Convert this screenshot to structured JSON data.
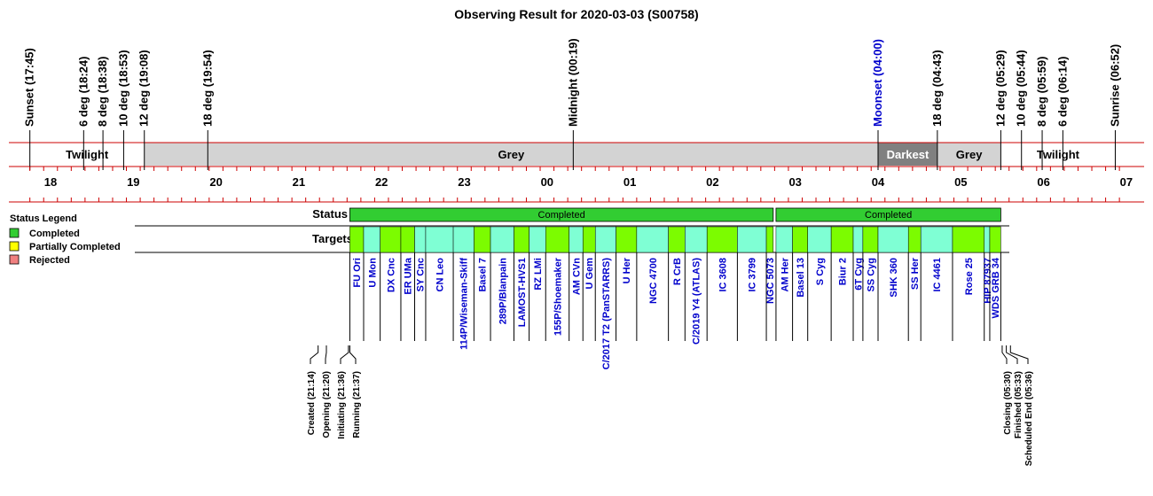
{
  "chart_data": {
    "type": "timeline",
    "title": "Observing Result for 2020-03-03 (S00758)",
    "events": [
      {
        "label": "Sunset (17:45)",
        "time": "17:45"
      },
      {
        "label": "6 deg (18:24)",
        "time": "18:24"
      },
      {
        "label": "8 deg (18:38)",
        "time": "18:38"
      },
      {
        "label": "10 deg (18:53)",
        "time": "18:53"
      },
      {
        "label": "12 deg (19:08)",
        "time": "19:08"
      },
      {
        "label": "18 deg (19:54)",
        "time": "19:54"
      },
      {
        "label": "Midnight (00:19)",
        "time": "00:19"
      },
      {
        "label": "Moonset (04:00)",
        "time": "04:00",
        "color": "#0000cc"
      },
      {
        "label": "18 deg (04:43)",
        "time": "04:43"
      },
      {
        "label": "12 deg (05:29)",
        "time": "05:29"
      },
      {
        "label": "10 deg (05:44)",
        "time": "05:44"
      },
      {
        "label": "8 deg (05:59)",
        "time": "05:59"
      },
      {
        "label": "6 deg (06:14)",
        "time": "06:14"
      },
      {
        "label": "Sunrise (06:52)",
        "time": "06:52"
      }
    ],
    "phases": [
      {
        "label": "Twilight",
        "start": "17:45",
        "end": "19:08",
        "color": "#ffffff",
        "text_color": "#000000"
      },
      {
        "label": "Grey",
        "start": "19:08",
        "end": "04:00",
        "color": "#d3d3d3",
        "text_color": "#000000"
      },
      {
        "label": "Darkest",
        "start": "04:00",
        "end": "04:43",
        "color": "#808080",
        "text_color": "#ffffff"
      },
      {
        "label": "Grey",
        "start": "04:43",
        "end": "05:29",
        "color": "#d3d3d3",
        "text_color": "#000000"
      },
      {
        "label": "Twilight",
        "start": "05:29",
        "end": "06:52",
        "color": "#ffffff",
        "text_color": "#000000"
      }
    ],
    "hour_ticks": [
      "18",
      "19",
      "20",
      "21",
      "22",
      "23",
      "00",
      "01",
      "02",
      "03",
      "04",
      "05",
      "06",
      "07"
    ],
    "status_label": "Status",
    "targets_label": "Targets",
    "status_blocks": [
      {
        "label": "Completed",
        "start": "21:37",
        "end": "02:44",
        "status": "Completed"
      },
      {
        "label": "Completed",
        "start": "02:46",
        "end": "05:29",
        "status": "Completed"
      }
    ],
    "targets": [
      {
        "name": "FU Ori",
        "start": "21:37",
        "end": "21:47",
        "color": "#7cfc00"
      },
      {
        "name": "U Mon",
        "start": "21:47",
        "end": "21:59",
        "color": "#7fffd4"
      },
      {
        "name": "DX Cnc",
        "start": "21:59",
        "end": "22:14",
        "color": "#7cfc00"
      },
      {
        "name": "ER UMa",
        "start": "22:14",
        "end": "22:24",
        "color": "#7cfc00"
      },
      {
        "name": "SY Cnc",
        "start": "22:24",
        "end": "22:32",
        "color": "#7fffd4"
      },
      {
        "name": "CN Leo",
        "start": "22:32",
        "end": "22:52",
        "color": "#7fffd4"
      },
      {
        "name": "114P/Wiseman-Skiff",
        "start": "22:52",
        "end": "23:07",
        "color": "#7fffd4"
      },
      {
        "name": "Basel 7",
        "start": "23:07",
        "end": "23:19",
        "color": "#7cfc00"
      },
      {
        "name": "289P/Blanpain",
        "start": "23:19",
        "end": "23:36",
        "color": "#7fffd4"
      },
      {
        "name": "LAMOST-HVS1",
        "start": "23:36",
        "end": "23:47",
        "color": "#7cfc00"
      },
      {
        "name": "RZ LMi",
        "start": "23:47",
        "end": "23:59",
        "color": "#7fffd4"
      },
      {
        "name": "155P/Shoemaker",
        "start": "23:59",
        "end": "00:16",
        "color": "#7cfc00"
      },
      {
        "name": "AM CVn",
        "start": "00:16",
        "end": "00:26",
        "color": "#7fffd4"
      },
      {
        "name": "U Gem",
        "start": "00:26",
        "end": "00:35",
        "color": "#7cfc00"
      },
      {
        "name": "C/2017 T2 (PanSTARRS)",
        "start": "00:35",
        "end": "00:50",
        "color": "#7fffd4"
      },
      {
        "name": "U Her",
        "start": "00:50",
        "end": "01:05",
        "color": "#7cfc00"
      },
      {
        "name": "NGC 4700",
        "start": "01:05",
        "end": "01:28",
        "color": "#7fffd4"
      },
      {
        "name": "R CrB",
        "start": "01:28",
        "end": "01:40",
        "color": "#7cfc00"
      },
      {
        "name": "C/2019 Y4 (ATLAS)",
        "start": "01:40",
        "end": "01:56",
        "color": "#7fffd4"
      },
      {
        "name": "IC 3608",
        "start": "01:56",
        "end": "02:18",
        "color": "#7cfc00"
      },
      {
        "name": "IC 3799",
        "start": "02:18",
        "end": "02:39",
        "color": "#7fffd4"
      },
      {
        "name": "NGC 5073",
        "start": "02:39",
        "end": "02:44",
        "color": "#7cfc00"
      },
      {
        "name": "AM Her",
        "start": "02:46",
        "end": "02:58",
        "color": "#7fffd4"
      },
      {
        "name": "Basel 13",
        "start": "02:58",
        "end": "03:09",
        "color": "#7cfc00"
      },
      {
        "name": "S Cyg",
        "start": "03:09",
        "end": "03:26",
        "color": "#7fffd4"
      },
      {
        "name": "Biur 2",
        "start": "03:26",
        "end": "03:42",
        "color": "#7cfc00"
      },
      {
        "name": "6T Cyg",
        "start": "03:42",
        "end": "03:49",
        "color": "#7fffd4"
      },
      {
        "name": "SS Cyg",
        "start": "03:49",
        "end": "04:00",
        "color": "#7cfc00"
      },
      {
        "name": "SHK 360",
        "start": "04:00",
        "end": "04:22",
        "color": "#7fffd4"
      },
      {
        "name": "SS Her",
        "start": "04:22",
        "end": "04:31",
        "color": "#7cfc00"
      },
      {
        "name": "IC 4461",
        "start": "04:31",
        "end": "04:54",
        "color": "#7fffd4"
      },
      {
        "name": "Rose 25",
        "start": "04:54",
        "end": "05:17",
        "color": "#7cfc00"
      },
      {
        "name": "HIP 87937",
        "start": "05:17",
        "end": "05:21",
        "color": "#7fffd4"
      },
      {
        "name": "WDS GRB 34",
        "start": "05:21",
        "end": "05:29",
        "color": "#7cfc00"
      }
    ],
    "milestones": [
      {
        "label": "Created (21:14)",
        "time": "21:14"
      },
      {
        "label": "Opening (21:20)",
        "time": "21:20"
      },
      {
        "label": "Initiating (21:36)",
        "time": "21:36"
      },
      {
        "label": "Running (21:37)",
        "time": "21:37"
      },
      {
        "label": "Closing (05:30)",
        "time": "05:30"
      },
      {
        "label": "Finished (05:33)",
        "time": "05:33"
      },
      {
        "label": "Scheduled End (05:36)",
        "time": "05:36"
      }
    ],
    "legend": {
      "title": "Status Legend",
      "items": [
        {
          "label": "Completed",
          "color": "#32cd32"
        },
        {
          "label": "Partially Completed",
          "color": "#ffff00"
        },
        {
          "label": "Rejected",
          "color": "#f08080"
        }
      ]
    },
    "colors": {
      "red_line": "#cc0000",
      "completed": "#32cd32",
      "moonset": "#0000cc",
      "target_name": "#0000cc"
    }
  }
}
